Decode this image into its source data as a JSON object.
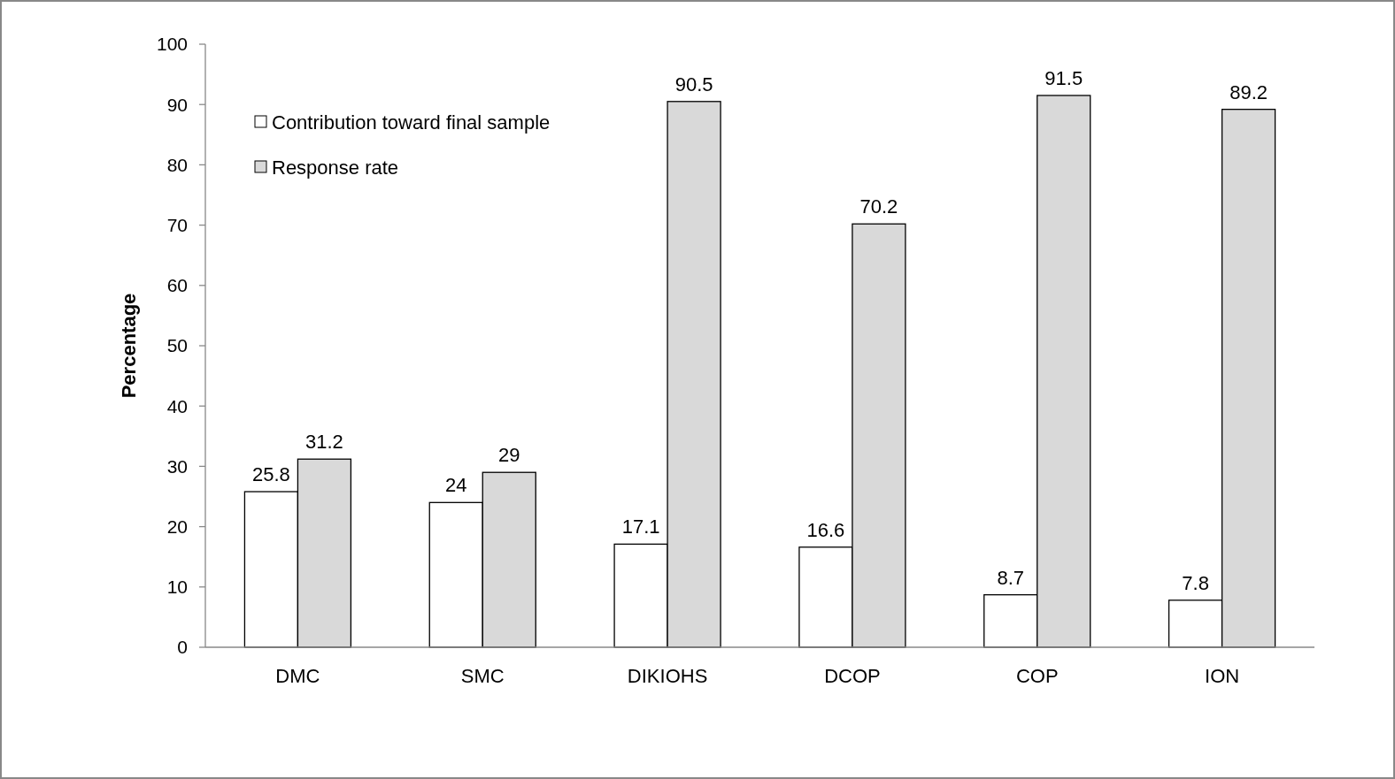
{
  "chart_data": {
    "type": "bar",
    "ylabel": "Percentage",
    "categories": [
      "DMC",
      "SMC",
      "DIKIOHS",
      "DCOP",
      "COP",
      "ION"
    ],
    "series": [
      {
        "name": "Contribution toward final sample",
        "color": "#ffffff",
        "values": [
          25.8,
          24,
          17.1,
          16.6,
          8.7,
          7.8
        ]
      },
      {
        "name": "Response rate",
        "color": "#d9d9d9",
        "values": [
          31.2,
          29,
          90.5,
          70.2,
          91.5,
          89.2
        ]
      }
    ],
    "ylim": [
      0,
      100
    ],
    "yticks": [
      0,
      10,
      20,
      30,
      40,
      50,
      60,
      70,
      80,
      90,
      100
    ],
    "data_labels": true,
    "legend": "top left",
    "grid": false
  }
}
